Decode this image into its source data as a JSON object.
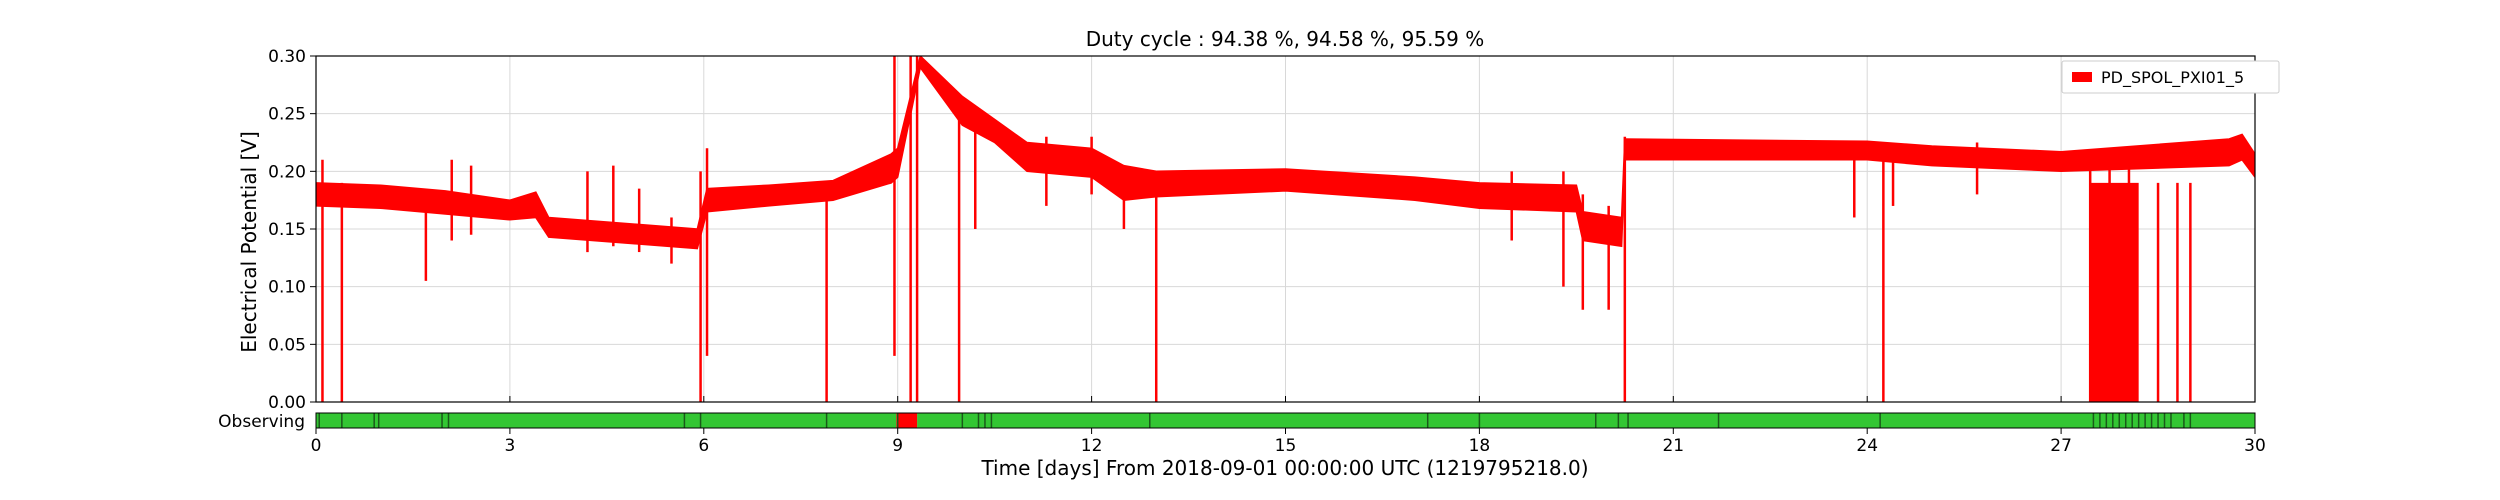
{
  "chart_data": {
    "type": "line",
    "title": "Duty cycle : 94.38 %, 94.58 %, 95.59 %",
    "xlabel": "Time [days] From 2018-09-01 00:00:00 UTC (1219795218.0)",
    "ylabel": "Electrical Potential [V]",
    "xlim": [
      0,
      30
    ],
    "ylim": [
      0,
      0.3
    ],
    "x_ticks": [
      0,
      3,
      6,
      9,
      12,
      15,
      18,
      21,
      24,
      27,
      30
    ],
    "y_ticks": [
      "0.00",
      "0.05",
      "0.10",
      "0.15",
      "0.20",
      "0.25",
      "0.30"
    ],
    "grid": true,
    "legend_position": "top-right",
    "series": [
      {
        "name": "PD_SPOL_PXI01_5",
        "color": "#ff0000",
        "band": [
          {
            "x": 0.0,
            "lo": 0.17,
            "hi": 0.19
          },
          {
            "x": 1.0,
            "lo": 0.168,
            "hi": 0.188
          },
          {
            "x": 2.0,
            "lo": 0.163,
            "hi": 0.183
          },
          {
            "x": 3.0,
            "lo": 0.158,
            "hi": 0.175
          },
          {
            "x": 3.4,
            "lo": 0.16,
            "hi": 0.182
          },
          {
            "x": 3.6,
            "lo": 0.143,
            "hi": 0.16
          },
          {
            "x": 5.9,
            "lo": 0.133,
            "hi": 0.15
          },
          {
            "x": 6.05,
            "lo": 0.165,
            "hi": 0.185
          },
          {
            "x": 7.0,
            "lo": 0.17,
            "hi": 0.188
          },
          {
            "x": 8.0,
            "lo": 0.175,
            "hi": 0.192
          },
          {
            "x": 8.9,
            "lo": 0.19,
            "hi": 0.215
          },
          {
            "x": 9.0,
            "lo": 0.195,
            "hi": 0.22
          },
          {
            "x": 9.35,
            "lo": 0.29,
            "hi": 0.3
          },
          {
            "x": 10.0,
            "lo": 0.24,
            "hi": 0.265
          },
          {
            "x": 10.5,
            "lo": 0.225,
            "hi": 0.245
          },
          {
            "x": 11.0,
            "lo": 0.2,
            "hi": 0.225
          },
          {
            "x": 12.0,
            "lo": 0.195,
            "hi": 0.22
          },
          {
            "x": 12.5,
            "lo": 0.175,
            "hi": 0.205
          },
          {
            "x": 13.0,
            "lo": 0.178,
            "hi": 0.2
          },
          {
            "x": 15.0,
            "lo": 0.183,
            "hi": 0.202
          },
          {
            "x": 17.0,
            "lo": 0.175,
            "hi": 0.195
          },
          {
            "x": 18.0,
            "lo": 0.168,
            "hi": 0.19
          },
          {
            "x": 19.5,
            "lo": 0.165,
            "hi": 0.188
          },
          {
            "x": 19.6,
            "lo": 0.14,
            "hi": 0.165
          },
          {
            "x": 20.2,
            "lo": 0.135,
            "hi": 0.16
          },
          {
            "x": 20.25,
            "lo": 0.21,
            "hi": 0.228
          },
          {
            "x": 24.0,
            "lo": 0.21,
            "hi": 0.226
          },
          {
            "x": 25.0,
            "lo": 0.205,
            "hi": 0.222
          },
          {
            "x": 27.0,
            "lo": 0.2,
            "hi": 0.217
          },
          {
            "x": 29.6,
            "lo": 0.205,
            "hi": 0.228
          },
          {
            "x": 29.8,
            "lo": 0.21,
            "hi": 0.232
          },
          {
            "x": 30.0,
            "lo": 0.195,
            "hi": 0.215
          }
        ],
        "spikes": [
          {
            "x": 0.1,
            "lo": 0.0,
            "hi": 0.21
          },
          {
            "x": 0.4,
            "lo": 0.0,
            "hi": 0.19
          },
          {
            "x": 1.7,
            "lo": 0.105,
            "hi": 0.18
          },
          {
            "x": 2.1,
            "lo": 0.14,
            "hi": 0.21
          },
          {
            "x": 2.4,
            "lo": 0.145,
            "hi": 0.205
          },
          {
            "x": 4.2,
            "lo": 0.13,
            "hi": 0.2
          },
          {
            "x": 4.6,
            "lo": 0.135,
            "hi": 0.205
          },
          {
            "x": 5.0,
            "lo": 0.13,
            "hi": 0.185
          },
          {
            "x": 5.5,
            "lo": 0.12,
            "hi": 0.16
          },
          {
            "x": 5.95,
            "lo": 0.0,
            "hi": 0.2
          },
          {
            "x": 6.05,
            "lo": 0.04,
            "hi": 0.22
          },
          {
            "x": 7.9,
            "lo": 0.0,
            "hi": 0.19
          },
          {
            "x": 8.95,
            "lo": 0.04,
            "hi": 0.3
          },
          {
            "x": 9.2,
            "lo": 0.0,
            "hi": 0.3
          },
          {
            "x": 9.3,
            "lo": 0.0,
            "hi": 0.3
          },
          {
            "x": 9.95,
            "lo": 0.0,
            "hi": 0.26
          },
          {
            "x": 10.2,
            "lo": 0.15,
            "hi": 0.25
          },
          {
            "x": 11.3,
            "lo": 0.17,
            "hi": 0.23
          },
          {
            "x": 12.0,
            "lo": 0.18,
            "hi": 0.23
          },
          {
            "x": 12.5,
            "lo": 0.15,
            "hi": 0.2
          },
          {
            "x": 13.0,
            "lo": 0.0,
            "hi": 0.2
          },
          {
            "x": 18.5,
            "lo": 0.14,
            "hi": 0.2
          },
          {
            "x": 19.3,
            "lo": 0.1,
            "hi": 0.2
          },
          {
            "x": 19.6,
            "lo": 0.08,
            "hi": 0.18
          },
          {
            "x": 20.0,
            "lo": 0.08,
            "hi": 0.17
          },
          {
            "x": 20.25,
            "lo": 0.0,
            "hi": 0.23
          },
          {
            "x": 23.8,
            "lo": 0.16,
            "hi": 0.215
          },
          {
            "x": 24.25,
            "lo": 0.0,
            "hi": 0.22
          },
          {
            "x": 24.4,
            "lo": 0.17,
            "hi": 0.22
          },
          {
            "x": 25.7,
            "lo": 0.18,
            "hi": 0.225
          },
          {
            "x": 27.45,
            "lo": 0.0,
            "hi": 0.215
          },
          {
            "x": 27.75,
            "lo": 0.0,
            "hi": 0.215
          },
          {
            "x": 28.05,
            "lo": 0.0,
            "hi": 0.215
          },
          {
            "x": 28.5,
            "lo": 0.0,
            "hi": 0.19
          },
          {
            "x": 28.8,
            "lo": 0.0,
            "hi": 0.19
          },
          {
            "x": 29.0,
            "lo": 0.0,
            "hi": 0.19
          }
        ],
        "dropouts": [
          {
            "from": 27.45,
            "to": 28.2,
            "lo": 0.0,
            "hi": 0.19
          }
        ]
      }
    ],
    "segments": {
      "label": "Observing",
      "active_color": "#33c633",
      "inactive_color": "#ff0000",
      "active_intervals": [
        [
          0,
          8.98
        ],
        [
          9.3,
          30
        ]
      ],
      "inactive_intervals": [
        [
          8.98,
          9.3
        ]
      ],
      "dark_ticks": [
        0.05,
        0.4,
        0.9,
        0.97,
        1.95,
        2.05,
        5.7,
        5.95,
        7.9,
        9.0,
        10.0,
        10.25,
        10.35,
        10.45,
        12.9,
        17.2,
        18.0,
        19.8,
        20.15,
        20.3,
        21.7,
        24.2,
        27.5,
        27.6,
        27.7,
        27.8,
        27.9,
        28.0,
        28.1,
        28.2,
        28.3,
        28.4,
        28.5,
        28.6,
        28.7,
        28.9,
        29.0
      ]
    }
  }
}
